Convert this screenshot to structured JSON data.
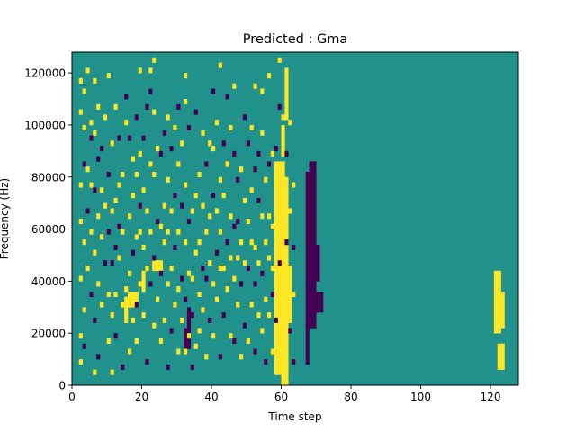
{
  "chart_data": {
    "type": "heatmap",
    "title": "Predicted : Gma",
    "xlabel": "Time step",
    "ylabel": "Frequency (Hz)",
    "xlim": [
      0,
      128
    ],
    "ylim": [
      0,
      128000
    ],
    "x_ticks": [
      0,
      20,
      40,
      60,
      80,
      100,
      120
    ],
    "y_ticks": [
      0,
      20000,
      40000,
      60000,
      80000,
      100000,
      120000
    ],
    "n_time_steps": 128,
    "n_freq_bins": 64,
    "bin_height_hz": 2000,
    "values": [
      -1,
      0,
      1
    ],
    "colors": {
      "-1": "#440154",
      "0": "#21918c",
      "1": "#fde725"
    },
    "blocks": [
      {
        "value": 1,
        "x": [
          58,
          61
        ],
        "y": [
          4000,
          86000
        ]
      },
      {
        "value": 1,
        "x": [
          59,
          62
        ],
        "y": [
          6000,
          80000
        ]
      },
      {
        "value": 1,
        "x": [
          60,
          62
        ],
        "y": [
          0,
          6000
        ]
      },
      {
        "value": -1,
        "x": [
          67,
          68
        ],
        "y": [
          8000,
          82000
        ]
      },
      {
        "value": -1,
        "x": [
          68,
          70
        ],
        "y": [
          22000,
          86000
        ]
      },
      {
        "value": -1,
        "x": [
          69,
          71
        ],
        "y": [
          40000,
          54000
        ]
      },
      {
        "value": -1,
        "x": [
          70,
          72
        ],
        "y": [
          28000,
          36000
        ]
      },
      {
        "value": 1,
        "x": [
          61,
          63
        ],
        "y": [
          34000,
          46000
        ]
      },
      {
        "value": 1,
        "x": [
          62,
          63
        ],
        "y": [
          24000,
          34000
        ]
      },
      {
        "value": 1,
        "x": [
          121,
          123
        ],
        "y": [
          20000,
          44000
        ]
      },
      {
        "value": 1,
        "x": [
          122,
          124
        ],
        "y": [
          6000,
          16000
        ]
      },
      {
        "value": 1,
        "x": [
          123,
          124
        ],
        "y": [
          22000,
          36000
        ]
      },
      {
        "value": 1,
        "x": [
          16,
          19
        ],
        "y": [
          30000,
          36000
        ]
      },
      {
        "value": 1,
        "x": [
          15,
          16
        ],
        "y": [
          24000,
          34000
        ]
      },
      {
        "value": 1,
        "x": [
          23,
          26
        ],
        "y": [
          44000,
          48000
        ]
      },
      {
        "value": 1,
        "x": [
          20,
          21
        ],
        "y": [
          36000,
          44000
        ]
      },
      {
        "value": -1,
        "x": [
          32,
          33
        ],
        "y": [
          12000,
          22000
        ]
      },
      {
        "value": -1,
        "x": [
          33,
          34
        ],
        "y": [
          14000,
          30000
        ]
      },
      {
        "value": 1,
        "x": [
          61,
          62
        ],
        "y": [
          102000,
          122000
        ]
      },
      {
        "value": 1,
        "x": [
          60,
          61
        ],
        "y": [
          88000,
          100000
        ]
      }
    ],
    "cells": [
      [
        2,
        4,
        1
      ],
      [
        2,
        9,
        1
      ],
      [
        2,
        20,
        1
      ],
      [
        2,
        31,
        1
      ],
      [
        2,
        38,
        1
      ],
      [
        2,
        52,
        1
      ],
      [
        2,
        58,
        1
      ],
      [
        3,
        7,
        -1
      ],
      [
        3,
        14,
        1
      ],
      [
        3,
        27,
        1
      ],
      [
        3,
        42,
        -1
      ],
      [
        3,
        49,
        1
      ],
      [
        3,
        56,
        1
      ],
      [
        4,
        22,
        1
      ],
      [
        4,
        33,
        -1
      ],
      [
        4,
        41,
        1
      ],
      [
        4,
        60,
        1
      ],
      [
        5,
        17,
        -1
      ],
      [
        5,
        29,
        1
      ],
      [
        5,
        38,
        1
      ],
      [
        5,
        47,
        -1
      ],
      [
        5,
        50,
        1
      ],
      [
        6,
        2,
        1
      ],
      [
        6,
        12,
        -1
      ],
      [
        6,
        25,
        1
      ],
      [
        6,
        37,
        -1
      ],
      [
        6,
        48,
        1
      ],
      [
        6,
        58,
        1
      ],
      [
        7,
        5,
        -1
      ],
      [
        7,
        19,
        1
      ],
      [
        7,
        32,
        1
      ],
      [
        7,
        43,
        -1
      ],
      [
        7,
        53,
        1
      ],
      [
        8,
        15,
        1
      ],
      [
        8,
        28,
        1
      ],
      [
        8,
        37,
        1
      ],
      [
        8,
        45,
        -1
      ],
      [
        9,
        23,
        -1
      ],
      [
        9,
        34,
        1
      ],
      [
        9,
        51,
        1
      ],
      [
        10,
        8,
        1
      ],
      [
        10,
        17,
        1
      ],
      [
        10,
        29,
        -1
      ],
      [
        10,
        40,
        -1
      ],
      [
        10,
        59,
        1
      ],
      [
        11,
        2,
        1
      ],
      [
        11,
        13,
        1
      ],
      [
        11,
        23,
        -1
      ],
      [
        11,
        46,
        1
      ],
      [
        11,
        33,
        1
      ],
      [
        12,
        9,
        -1
      ],
      [
        12,
        17,
        1
      ],
      [
        12,
        26,
        -1
      ],
      [
        12,
        35,
        1
      ],
      [
        12,
        53,
        1
      ],
      [
        13,
        24,
        1
      ],
      [
        13,
        30,
        -1
      ],
      [
        13,
        38,
        1
      ],
      [
        13,
        47,
        -1
      ],
      [
        14,
        3,
        -1
      ],
      [
        14,
        15,
        1
      ],
      [
        14,
        29,
        1
      ],
      [
        14,
        40,
        1
      ],
      [
        15,
        18,
        1
      ],
      [
        15,
        50,
        1
      ],
      [
        15,
        55,
        -1
      ],
      [
        16,
        6,
        1
      ],
      [
        16,
        21,
        1
      ],
      [
        16,
        32,
        1
      ],
      [
        16,
        47,
        -1
      ],
      [
        17,
        12,
        1
      ],
      [
        17,
        25,
        -1
      ],
      [
        17,
        36,
        1
      ],
      [
        17,
        43,
        1
      ],
      [
        18,
        8,
        1
      ],
      [
        18,
        15,
        -1
      ],
      [
        18,
        28,
        1
      ],
      [
        18,
        40,
        1
      ],
      [
        18,
        51,
        -1
      ],
      [
        19,
        19,
        1
      ],
      [
        19,
        29,
        1
      ],
      [
        19,
        34,
        -1
      ],
      [
        19,
        44,
        1
      ],
      [
        19,
        60,
        1
      ],
      [
        20,
        13,
        1
      ],
      [
        20,
        26,
        1
      ],
      [
        20,
        37,
        1
      ],
      [
        20,
        47,
        -1
      ],
      [
        21,
        4,
        -1
      ],
      [
        21,
        22,
        1
      ],
      [
        21,
        33,
        1
      ],
      [
        21,
        53,
        -1
      ],
      [
        22,
        19,
        -1
      ],
      [
        22,
        29,
        1
      ],
      [
        22,
        42,
        1
      ],
      [
        22,
        56,
        -1
      ],
      [
        22,
        60,
        1
      ],
      [
        23,
        11,
        1
      ],
      [
        23,
        24,
        -1
      ],
      [
        23,
        40,
        1
      ],
      [
        23,
        52,
        1
      ],
      [
        23,
        62,
        1
      ],
      [
        24,
        16,
        1
      ],
      [
        24,
        23,
        1
      ],
      [
        24,
        31,
        -1
      ],
      [
        24,
        45,
        1
      ],
      [
        25,
        8,
        1
      ],
      [
        25,
        21,
        -1
      ],
      [
        25,
        30,
        1
      ],
      [
        25,
        44,
        -1
      ],
      [
        26,
        12,
        1
      ],
      [
        26,
        27,
        1
      ],
      [
        26,
        34,
        1
      ],
      [
        26,
        48,
        -1
      ],
      [
        27,
        3,
        -1
      ],
      [
        27,
        19,
        1
      ],
      [
        27,
        29,
        1
      ],
      [
        27,
        39,
        1
      ],
      [
        27,
        51,
        1
      ],
      [
        28,
        10,
        -1
      ],
      [
        28,
        22,
        1
      ],
      [
        28,
        33,
        1
      ],
      [
        28,
        45,
        -1
      ],
      [
        29,
        15,
        1
      ],
      [
        29,
        26,
        -1
      ],
      [
        29,
        36,
        -1
      ],
      [
        29,
        49,
        1
      ],
      [
        30,
        6,
        1
      ],
      [
        30,
        18,
        1
      ],
      [
        30,
        29,
        1
      ],
      [
        30,
        42,
        1
      ],
      [
        30,
        53,
        -1
      ],
      [
        31,
        12,
        1
      ],
      [
        31,
        20,
        -1
      ],
      [
        31,
        34,
        -1
      ],
      [
        31,
        46,
        1
      ],
      [
        32,
        6,
        1
      ],
      [
        32,
        16,
        -1
      ],
      [
        32,
        27,
        1
      ],
      [
        32,
        38,
        1
      ],
      [
        32,
        54,
        1
      ],
      [
        32,
        59,
        1
      ],
      [
        33,
        9,
        1
      ],
      [
        33,
        21,
        1
      ],
      [
        33,
        31,
        -1
      ],
      [
        33,
        49,
        -1
      ],
      [
        34,
        3,
        -1
      ],
      [
        34,
        13,
        -1
      ],
      [
        34,
        20,
        1
      ],
      [
        34,
        33,
        1
      ],
      [
        35,
        7,
        1
      ],
      [
        35,
        25,
        1
      ],
      [
        35,
        36,
        1
      ],
      [
        35,
        52,
        -1
      ],
      [
        36,
        10,
        1
      ],
      [
        36,
        17,
        1
      ],
      [
        36,
        27,
        1
      ],
      [
        36,
        40,
        1
      ],
      [
        37,
        14,
        1
      ],
      [
        37,
        22,
        -1
      ],
      [
        37,
        34,
        1
      ],
      [
        37,
        48,
        1
      ],
      [
        38,
        5,
        1
      ],
      [
        38,
        20,
        -1
      ],
      [
        38,
        29,
        1
      ],
      [
        38,
        42,
        -1
      ],
      [
        39,
        12,
        -1
      ],
      [
        39,
        23,
        1
      ],
      [
        39,
        32,
        1
      ],
      [
        39,
        46,
        1
      ],
      [
        40,
        9,
        1
      ],
      [
        40,
        19,
        1
      ],
      [
        40,
        36,
        -1
      ],
      [
        40,
        45,
        1
      ],
      [
        40,
        56,
        -1
      ],
      [
        41,
        16,
        1
      ],
      [
        41,
        25,
        -1
      ],
      [
        41,
        33,
        1
      ],
      [
        41,
        50,
        1
      ],
      [
        42,
        5,
        -1
      ],
      [
        42,
        22,
        1
      ],
      [
        42,
        29,
        1
      ],
      [
        42,
        39,
        1
      ],
      [
        42,
        61,
        1
      ],
      [
        43,
        13,
        -1
      ],
      [
        43,
        22,
        1
      ],
      [
        43,
        36,
        1
      ],
      [
        43,
        46,
        -1
      ],
      [
        44,
        18,
        1
      ],
      [
        44,
        27,
        -1
      ],
      [
        44,
        42,
        1
      ],
      [
        44,
        55,
        -1
      ],
      [
        45,
        9,
        1
      ],
      [
        45,
        24,
        1
      ],
      [
        45,
        32,
        1
      ],
      [
        45,
        49,
        1
      ],
      [
        46,
        8,
        -1
      ],
      [
        46,
        20,
        1
      ],
      [
        46,
        30,
        -1
      ],
      [
        46,
        44,
        -1
      ],
      [
        46,
        57,
        1
      ],
      [
        47,
        15,
        1
      ],
      [
        47,
        24,
        1
      ],
      [
        47,
        31,
        -1
      ],
      [
        47,
        39,
        -1
      ],
      [
        48,
        5,
        1
      ],
      [
        48,
        19,
        -1
      ],
      [
        48,
        27,
        1
      ],
      [
        48,
        41,
        1
      ],
      [
        49,
        11,
        -1
      ],
      [
        49,
        23,
        1
      ],
      [
        49,
        35,
        1
      ],
      [
        49,
        51,
        -1
      ],
      [
        50,
        8,
        1
      ],
      [
        50,
        22,
        -1
      ],
      [
        50,
        31,
        1
      ],
      [
        50,
        46,
        -1
      ],
      [
        51,
        15,
        1
      ],
      [
        51,
        27,
        1
      ],
      [
        51,
        37,
        1
      ],
      [
        51,
        49,
        1
      ],
      [
        52,
        6,
        -1
      ],
      [
        52,
        19,
        -1
      ],
      [
        52,
        26,
        1
      ],
      [
        52,
        41,
        -1
      ],
      [
        52,
        57,
        1
      ],
      [
        53,
        13,
        1
      ],
      [
        53,
        23,
        1
      ],
      [
        53,
        35,
        -1
      ],
      [
        53,
        44,
        -1
      ],
      [
        54,
        10,
        1
      ],
      [
        54,
        21,
        -1
      ],
      [
        54,
        32,
        1
      ],
      [
        54,
        48,
        1
      ],
      [
        54,
        56,
        1
      ],
      [
        55,
        4,
        -1
      ],
      [
        55,
        16,
        1
      ],
      [
        55,
        27,
        1
      ],
      [
        55,
        39,
        1
      ],
      [
        56,
        13,
        1
      ],
      [
        56,
        24,
        1
      ],
      [
        56,
        32,
        1
      ],
      [
        56,
        42,
        -1
      ],
      [
        56,
        59,
        1
      ],
      [
        57,
        6,
        1
      ],
      [
        57,
        17,
        -1
      ],
      [
        57,
        22,
        1
      ],
      [
        57,
        30,
        1
      ],
      [
        57,
        44,
        1
      ],
      [
        58,
        12,
        -1
      ],
      [
        58,
        27,
        1
      ],
      [
        58,
        31,
        1
      ],
      [
        58,
        45,
        -1
      ],
      [
        59,
        17,
        1
      ],
      [
        59,
        23,
        -1
      ],
      [
        59,
        38,
        1
      ],
      [
        59,
        53,
        -1
      ],
      [
        59,
        62,
        1
      ],
      [
        60,
        5,
        1
      ],
      [
        60,
        15,
        1
      ],
      [
        60,
        29,
        1
      ],
      [
        60,
        51,
        1
      ],
      [
        61,
        3,
        1
      ],
      [
        61,
        19,
        1
      ],
      [
        61,
        27,
        -1
      ],
      [
        61,
        44,
        -1
      ],
      [
        62,
        10,
        -1
      ],
      [
        62,
        21,
        1
      ],
      [
        62,
        33,
        1
      ],
      [
        62,
        50,
        1
      ],
      [
        63,
        4,
        -1
      ],
      [
        63,
        17,
        1
      ],
      [
        63,
        26,
        -1
      ],
      [
        63,
        38,
        1
      ]
    ]
  }
}
